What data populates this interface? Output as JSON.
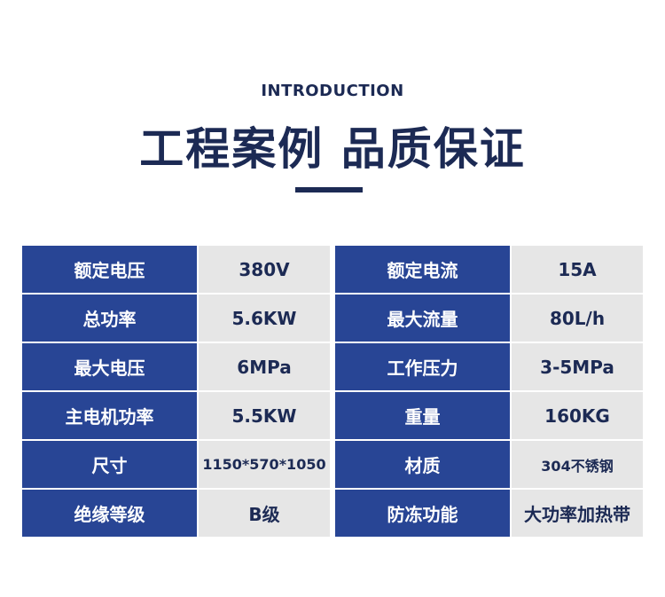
{
  "header": {
    "subtitle": "INTRODUCTION",
    "title": "工程案例 品质保证"
  },
  "colors": {
    "label_bg": "#284595",
    "value_bg": "#e6e6e6",
    "text": "#1c2a54"
  },
  "left": [
    {
      "label": "额定电压",
      "value": "380V"
    },
    {
      "label": "总功率",
      "value": "5.6KW"
    },
    {
      "label": "最大电压",
      "value": "6MPa"
    },
    {
      "label": "主电机功率",
      "value": "5.5KW"
    },
    {
      "label": "尺寸",
      "value": "1150*570*1050"
    },
    {
      "label": "绝缘等级",
      "value": "B级"
    }
  ],
  "right": [
    {
      "label": "额定电流",
      "value": "15A"
    },
    {
      "label": "最大流量",
      "value": "80L/h"
    },
    {
      "label": "工作压力",
      "value": "3-5MPa"
    },
    {
      "label": "重量",
      "value": "160KG"
    },
    {
      "label": "材质",
      "value": "304不锈钢"
    },
    {
      "label": "防冻功能",
      "value": "大功率加热带"
    }
  ]
}
